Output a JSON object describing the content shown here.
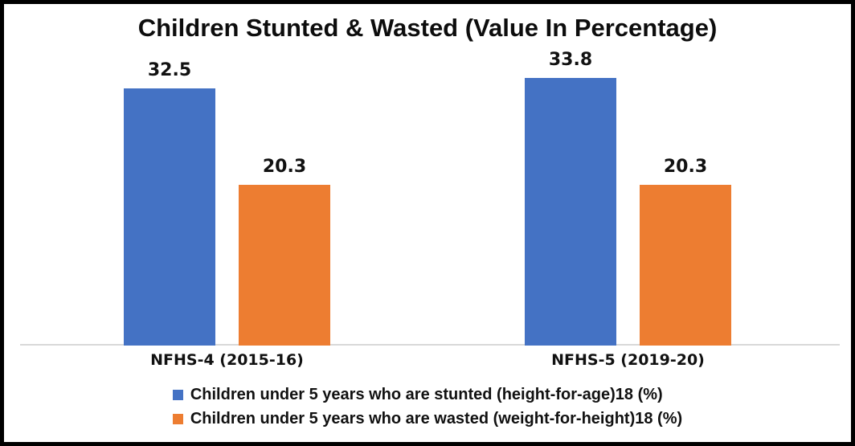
{
  "frame": {
    "background": "#ffffff",
    "border_color": "#000000"
  },
  "chart_data": {
    "type": "bar",
    "title": "Children Stunted & Wasted (Value In Percentage)",
    "categories": [
      "NFHS-4 (2015-16)",
      "NFHS-5 (2019-20)"
    ],
    "series": [
      {
        "key": "stunted",
        "name": "Children under 5 years who are stunted (height-for-age)18 (%)",
        "color": "#4472C4",
        "values": [
          32.5,
          33.8
        ]
      },
      {
        "key": "wasted",
        "name": "Children under 5 years who are wasted (weight-for-height)18 (%)",
        "color": "#ED7D31",
        "values": [
          20.3,
          20.3
        ]
      }
    ],
    "data_labels": [
      [
        "32.5",
        "33.8"
      ],
      [
        "20.3",
        "20.3"
      ]
    ],
    "xlabel": "",
    "ylabel": "",
    "ylim": [
      0,
      38.3
    ],
    "grid": false,
    "axis_line_color": "#d9d9d9",
    "legend_position": "bottom"
  }
}
